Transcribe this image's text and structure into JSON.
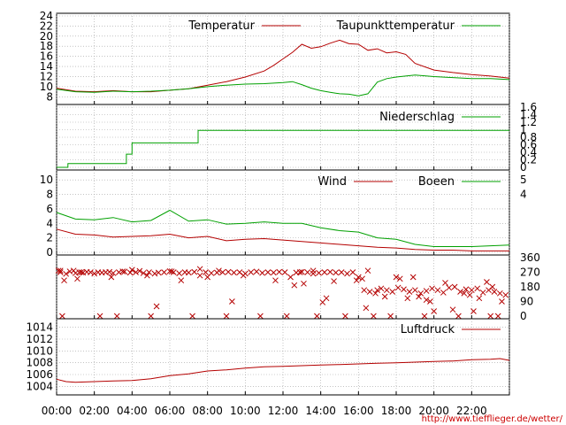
{
  "source_url": "http://www.tiefflieger.de/wetter/",
  "colors": {
    "red": "#b40000",
    "green": "#00a000",
    "grid": "#a0a0a0"
  },
  "x_labels": [
    "00:00",
    "02:00",
    "04:00",
    "06:00",
    "08:00",
    "10:00",
    "12:00",
    "14:00",
    "16:00",
    "18:00",
    "20:00",
    "22:00"
  ],
  "chart_data": [
    {
      "type": "line",
      "x_unit": "hour",
      "xlim": [
        0,
        24
      ],
      "ylim": [
        7,
        24
      ],
      "yticks": [
        "8",
        "10",
        "12",
        "14",
        "16",
        "18",
        "20",
        "22",
        "24"
      ],
      "series": [
        {
          "name": "Temperatur",
          "color": "#b40000",
          "x": [
            0,
            1,
            2,
            3,
            4,
            5,
            6,
            7,
            8,
            9,
            10,
            11,
            11.5,
            12,
            12.5,
            13,
            13.5,
            14,
            14.5,
            15,
            15.5,
            16,
            16.5,
            17,
            17.5,
            18,
            18.5,
            19,
            20,
            21,
            22,
            23,
            24
          ],
          "y": [
            9.7,
            9.1,
            9.0,
            9.2,
            9.0,
            9.0,
            9.3,
            9.6,
            10.3,
            11.0,
            11.9,
            13.1,
            14.2,
            15.5,
            16.8,
            18.4,
            17.6,
            17.9,
            18.6,
            19.2,
            18.5,
            18.4,
            17.2,
            17.5,
            16.7,
            16.9,
            16.4,
            14.6,
            13.3,
            12.8,
            12.4,
            12.1,
            11.7
          ]
        },
        {
          "name": "Taupunkttemperatur",
          "color": "#00a000",
          "x": [
            0,
            1,
            2,
            3,
            4,
            5,
            6,
            7,
            8,
            9,
            10,
            11,
            12,
            12.5,
            13,
            13.5,
            14,
            14.5,
            15,
            15.5,
            16,
            16.5,
            17,
            17.5,
            18,
            19,
            20,
            21,
            22,
            23,
            24
          ],
          "y": [
            9.5,
            9.0,
            8.9,
            9.1,
            9.0,
            9.1,
            9.3,
            9.6,
            10.0,
            10.3,
            10.5,
            10.6,
            10.8,
            11.0,
            10.4,
            9.7,
            9.2,
            8.9,
            8.6,
            8.5,
            8.2,
            8.6,
            10.9,
            11.6,
            11.9,
            12.3,
            12.0,
            11.8,
            11.6,
            11.6,
            11.4
          ]
        }
      ]
    },
    {
      "type": "line",
      "x_unit": "hour",
      "xlim": [
        0,
        24
      ],
      "ylim": [
        0,
        1.6
      ],
      "yticks": [
        "0",
        "0.2",
        "0.4",
        "0.6",
        "0.8",
        "1",
        "1.2",
        "1.4",
        "1.6"
      ],
      "series": [
        {
          "name": "Niederschlag",
          "color": "#00a000",
          "x": [
            0,
            0.6,
            0.6,
            3.7,
            3.7,
            4.0,
            4.0,
            7.5,
            7.5,
            24
          ],
          "y": [
            0,
            0,
            0.1,
            0.1,
            0.35,
            0.35,
            0.65,
            0.65,
            0.98,
            0.98
          ]
        }
      ]
    },
    {
      "type": "line",
      "x_unit": "hour",
      "xlim": [
        0,
        24
      ],
      "ylim": [
        0,
        11
      ],
      "yticks": [
        "0",
        "2",
        "4",
        "6",
        "8",
        "10"
      ],
      "right_ticks": [
        "4",
        "5"
      ],
      "series": [
        {
          "name": "Wind",
          "color": "#b40000",
          "x": [
            0,
            1,
            2,
            3,
            4,
            5,
            6,
            7,
            8,
            9,
            10,
            11,
            12,
            13,
            14,
            15,
            16,
            17,
            18,
            19,
            20,
            21,
            22,
            23,
            24
          ],
          "y": [
            3.2,
            2.5,
            2.4,
            2.1,
            2.2,
            2.3,
            2.5,
            2.0,
            2.2,
            1.6,
            1.8,
            1.9,
            1.7,
            1.5,
            1.3,
            1.1,
            0.9,
            0.7,
            0.6,
            0.4,
            0.3,
            0.3,
            0.2,
            0.2,
            0.2
          ]
        },
        {
          "name": "Boeen",
          "color": "#00a000",
          "x": [
            0,
            1,
            2,
            3,
            4,
            5,
            6,
            7,
            8,
            9,
            10,
            11,
            12,
            13,
            14,
            15,
            16,
            17,
            18,
            19,
            20,
            21,
            22,
            23,
            24
          ],
          "y": [
            5.5,
            4.6,
            4.5,
            4.8,
            4.2,
            4.4,
            5.8,
            4.3,
            4.5,
            3.9,
            4.0,
            4.2,
            4.0,
            4.0,
            3.4,
            3.0,
            2.8,
            2.0,
            1.8,
            1.1,
            0.8,
            0.8,
            0.8,
            0.9,
            1.0
          ]
        }
      ]
    },
    {
      "type": "scatter",
      "x_unit": "hour",
      "xlim": [
        0,
        24
      ],
      "ylim": [
        0,
        360
      ],
      "right_ticks": [
        "0",
        "90",
        "180",
        "270",
        "360"
      ],
      "series": [
        {
          "name": "",
          "color": "#b40000",
          "x": [
            0.2,
            0.5,
            0.7,
            1.0,
            1.2,
            1.4,
            1.6,
            1.8,
            2.0,
            2.2,
            2.4,
            2.6,
            2.8,
            3.0,
            3.3,
            3.6,
            3.9,
            4.2,
            4.4,
            4.6,
            4.9,
            5.2,
            5.4,
            5.7,
            6.0,
            6.2,
            6.5,
            6.8,
            7.0,
            7.3,
            7.6,
            7.9,
            8.2,
            8.5,
            8.8,
            9.1,
            9.4,
            9.7,
            10.0,
            10.3,
            10.6,
            10.9,
            11.2,
            11.5,
            11.8,
            12.1,
            12.4,
            12.7,
            13.0,
            13.3,
            13.6,
            13.9,
            14.2,
            14.5,
            14.8,
            15.1,
            15.4,
            15.7,
            16.0,
            16.3,
            16.6,
            16.9,
            17.2,
            17.5,
            17.8,
            18.1,
            18.4,
            18.7,
            19.0,
            19.3,
            19.6,
            19.9,
            20.2,
            20.5,
            20.8,
            21.1,
            21.4,
            21.7,
            22.0,
            22.3,
            22.6,
            22.9,
            23.2,
            23.5,
            23.8,
            0.4,
            1.1,
            2.9,
            4.8,
            6.6,
            8.0,
            9.9,
            11.6,
            13.1,
            14.7,
            16.2,
            17.4,
            18.9,
            20.6,
            22.4,
            23.6,
            0.3,
            2.3,
            3.2,
            5.0,
            7.2,
            9.0,
            10.8,
            12.2,
            13.8,
            15.3,
            16.8,
            17.7,
            19.5,
            21.3,
            23.0,
            0.9,
            4.0,
            8.6,
            12.9,
            14.3,
            16.5,
            18.0,
            19.2,
            20.0,
            21.9,
            23.1,
            0.1,
            3.5,
            7.6,
            13.6,
            15.9,
            17.0,
            18.6,
            19.8,
            21.0,
            22.8,
            23.4,
            0.2,
            1.3,
            5.3,
            6.1,
            9.3,
            12.6,
            14.1,
            16.4,
            18.2,
            19.6,
            21.6,
            22.1
          ],
          "y": [
            270,
            260,
            275,
            265,
            270,
            268,
            272,
            270,
            262,
            270,
            268,
            270,
            272,
            265,
            270,
            274,
            268,
            270,
            278,
            265,
            270,
            262,
            268,
            270,
            276,
            270,
            264,
            270,
            268,
            272,
            250,
            270,
            265,
            268,
            270,
            272,
            268,
            270,
            262,
            270,
            274,
            266,
            270,
            268,
            272,
            270,
            240,
            268,
            272,
            270,
            262,
            266,
            270,
            272,
            268,
            270,
            262,
            270,
            240,
            160,
            150,
            140,
            170,
            160,
            150,
            175,
            165,
            150,
            160,
            140,
            155,
            170,
            160,
            145,
            175,
            180,
            150,
            165,
            160,
            170,
            145,
            160,
            150,
            140,
            130,
            220,
            230,
            240,
            250,
            220,
            240,
            250,
            220,
            200,
            215,
            230,
            120,
            240,
            205,
            110,
            90,
            0,
            0,
            0,
            0,
            0,
            0,
            0,
            0,
            0,
            0,
            0,
            0,
            0,
            0,
            0,
            280,
            285,
            280,
            270,
            110,
            280,
            240,
            120,
            30,
            130,
            180,
            280,
            275,
            290,
            280,
            220,
            160,
            110,
            90,
            40,
            210,
            0,
            280,
            270,
            60,
            275,
            90,
            190,
            85,
            50,
            230,
            100,
            140,
            30
          ]
        }
      ]
    },
    {
      "type": "line",
      "x_unit": "hour",
      "xlim": [
        0,
        24
      ],
      "ylim": [
        1003,
        1015
      ],
      "yticks": [
        "1004",
        "1006",
        "1008",
        "1010",
        "1012",
        "1014"
      ],
      "series": [
        {
          "name": "Luftdruck",
          "color": "#b40000",
          "x": [
            0,
            0.5,
            1,
            2,
            3,
            4,
            5,
            6,
            7,
            8,
            9,
            10,
            11,
            12,
            13,
            14,
            15,
            16,
            17,
            18,
            19,
            20,
            21,
            22,
            23,
            23.5,
            24
          ],
          "y": [
            1005.2,
            1004.8,
            1004.7,
            1004.8,
            1004.9,
            1005.0,
            1005.3,
            1005.8,
            1006.1,
            1006.6,
            1006.8,
            1007.1,
            1007.3,
            1007.4,
            1007.5,
            1007.6,
            1007.7,
            1007.8,
            1007.9,
            1008.0,
            1008.1,
            1008.2,
            1008.3,
            1008.5,
            1008.6,
            1008.7,
            1008.4
          ]
        }
      ]
    }
  ]
}
